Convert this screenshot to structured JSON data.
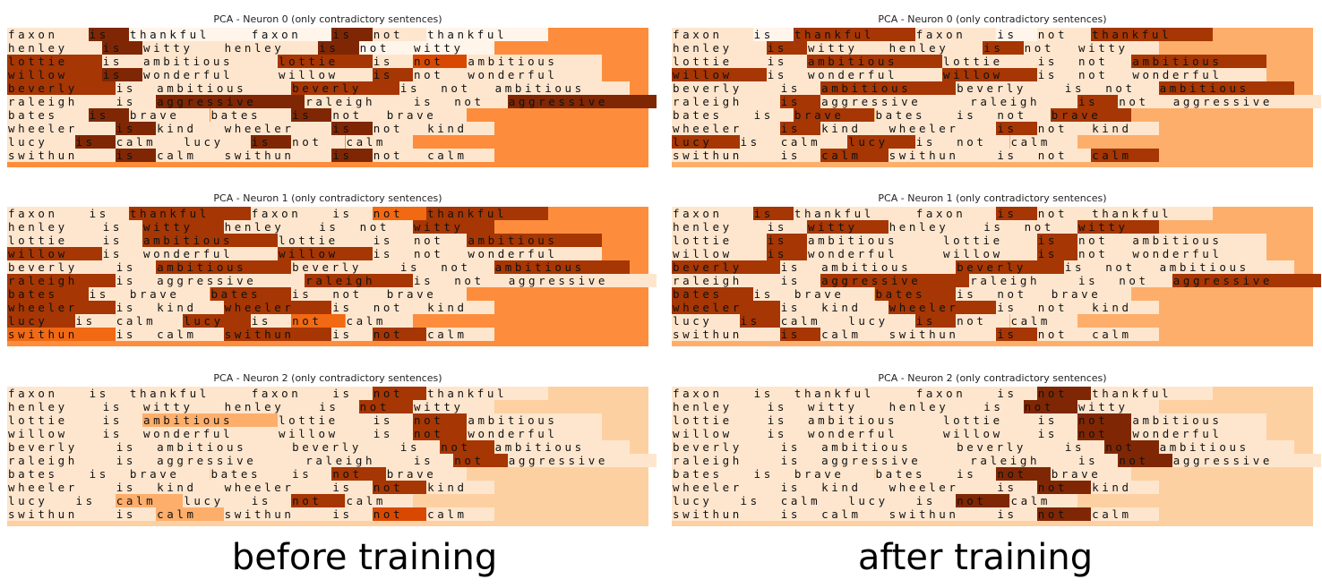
{
  "colors": {
    "levels": [
      "#fff5eb",
      "#fee6ce",
      "#fdd0a2",
      "#fdae6b",
      "#fd8d3c",
      "#f16913",
      "#d94801",
      "#a63603",
      "#7f2704"
    ]
  },
  "captions": {
    "before": "before training",
    "after": "after training"
  },
  "chart_data": {
    "type": "heatmap",
    "sentences": [
      [
        "faxon",
        "is",
        "thankful",
        "faxon",
        "is",
        "not",
        "thankful"
      ],
      [
        "henley",
        "is",
        "witty",
        "henley",
        "is",
        "not",
        "witty"
      ],
      [
        "lottie",
        "is",
        "ambitious",
        "lottie",
        "is",
        "not",
        "ambitious"
      ],
      [
        "willow",
        "is",
        "wonderful",
        "willow",
        "is",
        "not",
        "wonderful"
      ],
      [
        "beverly",
        "is",
        "ambitious",
        "beverly",
        "is",
        "not",
        "ambitious"
      ],
      [
        "raleigh",
        "is",
        "aggressive",
        "raleigh",
        "is",
        "not",
        "aggressive"
      ],
      [
        "bates",
        "is",
        "brave",
        "bates",
        "is",
        "not",
        "brave"
      ],
      [
        "wheeler",
        "is",
        "kind",
        "wheeler",
        "is",
        "not",
        "kind"
      ],
      [
        "lucy",
        "is",
        "calm",
        "lucy",
        "is",
        "not",
        "calm"
      ],
      [
        "swithun",
        "is",
        "calm",
        "swithun",
        "is",
        "not",
        "calm"
      ]
    ],
    "panels": [
      {
        "title": "PCA - Neuron 0 (only contradictory sentences)",
        "group": "before",
        "pad": 4,
        "values": [
          [
            1,
            8,
            0,
            0,
            8,
            1,
            0
          ],
          [
            1,
            8,
            1,
            1,
            8,
            0,
            0
          ],
          [
            7,
            1,
            1,
            7,
            1,
            6,
            1
          ],
          [
            7,
            8,
            1,
            1,
            7,
            1,
            1
          ],
          [
            7,
            1,
            1,
            7,
            1,
            1,
            1
          ],
          [
            1,
            1,
            8,
            1,
            1,
            1,
            8
          ],
          [
            1,
            8,
            1,
            1,
            8,
            1,
            1
          ],
          [
            1,
            8,
            1,
            1,
            8,
            1,
            1
          ],
          [
            1,
            8,
            1,
            1,
            8,
            1,
            1
          ],
          [
            1,
            8,
            1,
            1,
            8,
            1,
            1
          ]
        ]
      },
      {
        "title": "PCA - Neuron 0 (only contradictory sentences)",
        "group": "after",
        "pad": 3,
        "values": [
          [
            1,
            0,
            7,
            1,
            0,
            1,
            7
          ],
          [
            1,
            7,
            1,
            1,
            7,
            1,
            1
          ],
          [
            1,
            1,
            7,
            1,
            1,
            1,
            7
          ],
          [
            7,
            1,
            1,
            7,
            1,
            1,
            1
          ],
          [
            1,
            1,
            7,
            1,
            1,
            1,
            7
          ],
          [
            1,
            7,
            1,
            1,
            7,
            1,
            1
          ],
          [
            1,
            1,
            7,
            1,
            1,
            1,
            7
          ],
          [
            1,
            7,
            1,
            1,
            7,
            1,
            1
          ],
          [
            7,
            1,
            1,
            7,
            1,
            1,
            1
          ],
          [
            1,
            1,
            7,
            1,
            1,
            1,
            7
          ]
        ]
      },
      {
        "title": "PCA - Neuron 1 (only contradictory sentences)",
        "group": "before",
        "pad": 4,
        "values": [
          [
            1,
            1,
            7,
            1,
            1,
            5,
            7
          ],
          [
            1,
            1,
            7,
            1,
            1,
            1,
            7
          ],
          [
            1,
            1,
            7,
            1,
            1,
            1,
            7
          ],
          [
            7,
            1,
            1,
            7,
            1,
            1,
            1
          ],
          [
            1,
            1,
            7,
            1,
            1,
            1,
            7
          ],
          [
            7,
            1,
            1,
            7,
            1,
            1,
            1
          ],
          [
            7,
            1,
            1,
            7,
            1,
            1,
            1
          ],
          [
            7,
            1,
            1,
            7,
            1,
            1,
            1
          ],
          [
            7,
            1,
            1,
            7,
            1,
            5,
            1
          ],
          [
            5,
            1,
            1,
            7,
            1,
            7,
            1
          ]
        ]
      },
      {
        "title": "PCA - Neuron 1 (only contradictory sentences)",
        "group": "after",
        "pad": 3,
        "values": [
          [
            1,
            7,
            1,
            1,
            7,
            1,
            1
          ],
          [
            1,
            1,
            7,
            1,
            1,
            1,
            7
          ],
          [
            1,
            7,
            1,
            1,
            7,
            1,
            1
          ],
          [
            1,
            7,
            1,
            1,
            7,
            1,
            1
          ],
          [
            7,
            1,
            1,
            7,
            1,
            1,
            1
          ],
          [
            1,
            1,
            7,
            1,
            1,
            1,
            7
          ],
          [
            7,
            1,
            1,
            7,
            1,
            1,
            1
          ],
          [
            7,
            1,
            1,
            7,
            1,
            1,
            1
          ],
          [
            1,
            7,
            1,
            1,
            7,
            1,
            1
          ],
          [
            1,
            7,
            1,
            1,
            7,
            1,
            1
          ]
        ]
      },
      {
        "title": "PCA - Neuron 2 (only contradictory sentences)",
        "group": "before",
        "pad": 2,
        "values": [
          [
            1,
            1,
            1,
            1,
            1,
            7,
            1
          ],
          [
            1,
            1,
            1,
            1,
            1,
            7,
            1
          ],
          [
            1,
            1,
            3,
            1,
            1,
            7,
            1
          ],
          [
            1,
            1,
            1,
            1,
            1,
            7,
            1
          ],
          [
            1,
            1,
            1,
            1,
            1,
            7,
            1
          ],
          [
            1,
            1,
            1,
            1,
            1,
            7,
            1
          ],
          [
            1,
            1,
            1,
            1,
            1,
            7,
            1
          ],
          [
            1,
            1,
            1,
            1,
            1,
            7,
            1
          ],
          [
            1,
            1,
            3,
            1,
            1,
            7,
            1
          ],
          [
            1,
            1,
            3,
            1,
            1,
            6,
            1
          ]
        ]
      },
      {
        "title": "PCA - Neuron 2 (only contradictory sentences)",
        "group": "after",
        "pad": 2,
        "values": [
          [
            1,
            1,
            1,
            1,
            1,
            8,
            1
          ],
          [
            1,
            1,
            1,
            1,
            1,
            8,
            1
          ],
          [
            1,
            1,
            1,
            1,
            1,
            8,
            1
          ],
          [
            1,
            1,
            1,
            1,
            1,
            8,
            1
          ],
          [
            1,
            1,
            1,
            1,
            1,
            8,
            1
          ],
          [
            1,
            1,
            1,
            1,
            1,
            8,
            1
          ],
          [
            1,
            1,
            1,
            1,
            1,
            8,
            1
          ],
          [
            1,
            1,
            1,
            1,
            1,
            8,
            1
          ],
          [
            1,
            1,
            1,
            1,
            1,
            8,
            1
          ],
          [
            1,
            1,
            1,
            1,
            1,
            8,
            1
          ]
        ]
      }
    ]
  }
}
